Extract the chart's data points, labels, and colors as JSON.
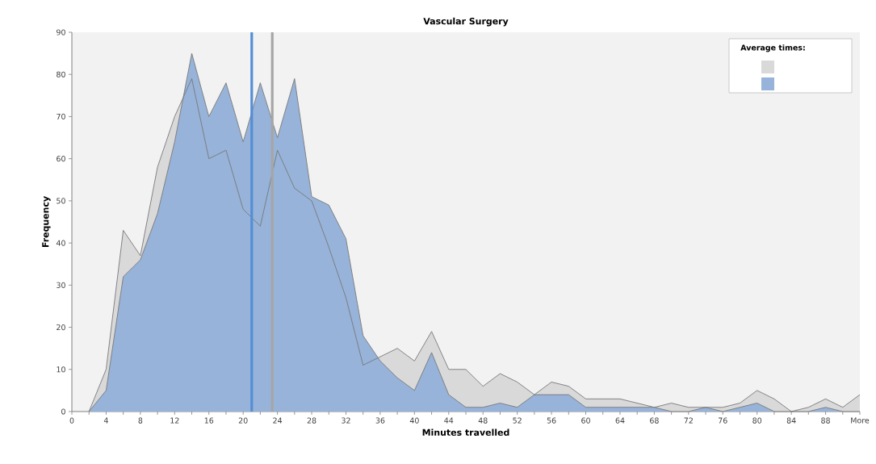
{
  "chart_data": {
    "type": "area",
    "title": "Vascular Surgery",
    "xlabel": "Minutes travelled",
    "ylabel": "Frequency",
    "legend_title": "Average times:",
    "xlim": [
      0,
      92
    ],
    "ylim": [
      0,
      90
    ],
    "yticks": [
      0,
      10,
      20,
      30,
      40,
      50,
      60,
      70,
      80,
      90
    ],
    "xticks": [
      0,
      {
        "value": 2,
        "label": null
      },
      4,
      {
        "value": 6,
        "label": null
      },
      8,
      {
        "value": 10,
        "label": null
      },
      12,
      {
        "value": 14,
        "label": null
      },
      16,
      {
        "value": 18,
        "label": null
      },
      20,
      {
        "value": 22,
        "label": null
      },
      24,
      {
        "value": 26,
        "label": null
      },
      28,
      {
        "value": 30,
        "label": null
      },
      32,
      {
        "value": 34,
        "label": null
      },
      36,
      {
        "value": 38,
        "label": null
      },
      40,
      {
        "value": 42,
        "label": null
      },
      44,
      {
        "value": 46,
        "label": null
      },
      48,
      {
        "value": 50,
        "label": null
      },
      52,
      {
        "value": 54,
        "label": null
      },
      56,
      {
        "value": 58,
        "label": null
      },
      60,
      {
        "value": 62,
        "label": null
      },
      64,
      {
        "value": 66,
        "label": null
      },
      68,
      {
        "value": 70,
        "label": null
      },
      72,
      {
        "value": 74,
        "label": null
      },
      76,
      {
        "value": 78,
        "label": null
      },
      80,
      {
        "value": 82,
        "label": null
      },
      84,
      {
        "value": 86,
        "label": null
      },
      88,
      {
        "value": 90,
        "label": null
      },
      {
        "value": 92,
        "label": "More"
      }
    ],
    "x": [
      2,
      4,
      6,
      8,
      10,
      12,
      14,
      16,
      18,
      20,
      22,
      24,
      26,
      28,
      30,
      32,
      34,
      36,
      38,
      40,
      42,
      44,
      46,
      48,
      50,
      52,
      54,
      56,
      58,
      60,
      62,
      64,
      66,
      68,
      70,
      72,
      74,
      76,
      78,
      80,
      82,
      84,
      86,
      88,
      90,
      92
    ],
    "series": [
      {
        "color": "#d9d9d9",
        "values": [
          0,
          10,
          43,
          37,
          58,
          70,
          79,
          60,
          62,
          48,
          44,
          62,
          53,
          50,
          39,
          27,
          11,
          13,
          15,
          12,
          19,
          10,
          10,
          6,
          9,
          7,
          4,
          7,
          6,
          3,
          3,
          3,
          2,
          1,
          2,
          1,
          1,
          1,
          2,
          5,
          3,
          0,
          1,
          3,
          1,
          4
        ]
      },
      {
        "color": "#97b3d9",
        "values": [
          0,
          5,
          32,
          36,
          47,
          64,
          85,
          70,
          78,
          64,
          78,
          65,
          79,
          51,
          49,
          41,
          18,
          12,
          8,
          5,
          14,
          4,
          1,
          1,
          2,
          1,
          4,
          4,
          4,
          1,
          1,
          1,
          1,
          1,
          0,
          0,
          1,
          0,
          1,
          2,
          0,
          0,
          0,
          1,
          0,
          0
        ]
      }
    ],
    "ref_lines": [
      {
        "axis": "x",
        "value": 21,
        "color": "#558ed5"
      },
      {
        "axis": "x",
        "value": 23.4,
        "color": "#a6a6a6"
      }
    ]
  }
}
